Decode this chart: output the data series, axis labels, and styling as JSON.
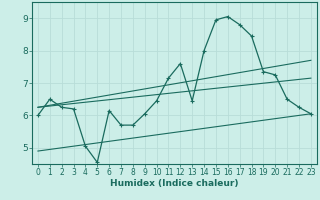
{
  "xlabel": "Humidex (Indice chaleur)",
  "bg_color": "#cceee8",
  "line_color": "#1a6b5e",
  "grid_color": "#b8ddd8",
  "xlim": [
    -0.5,
    23.5
  ],
  "ylim": [
    4.5,
    9.5
  ],
  "xticks": [
    0,
    1,
    2,
    3,
    4,
    5,
    6,
    7,
    8,
    9,
    10,
    11,
    12,
    13,
    14,
    15,
    16,
    17,
    18,
    19,
    20,
    21,
    22,
    23
  ],
  "yticks": [
    5,
    6,
    7,
    8,
    9
  ],
  "line1_x": [
    0,
    1,
    2,
    3,
    4,
    5,
    6,
    7,
    8,
    9,
    10,
    11,
    12,
    13,
    14,
    15,
    16,
    17,
    18,
    19,
    20,
    21,
    22,
    23
  ],
  "line1_y": [
    6.0,
    6.5,
    6.25,
    6.2,
    5.05,
    4.55,
    6.15,
    5.7,
    5.7,
    6.05,
    6.45,
    7.15,
    7.6,
    6.45,
    8.0,
    8.95,
    9.05,
    8.8,
    8.45,
    7.35,
    7.25,
    6.5,
    6.25,
    6.05
  ],
  "line2_x": [
    0,
    23
  ],
  "line2_y": [
    6.25,
    7.15
  ],
  "line3_x": [
    0,
    23
  ],
  "line3_y": [
    6.25,
    7.7
  ],
  "line4_x": [
    0,
    23
  ],
  "line4_y": [
    4.9,
    6.05
  ]
}
